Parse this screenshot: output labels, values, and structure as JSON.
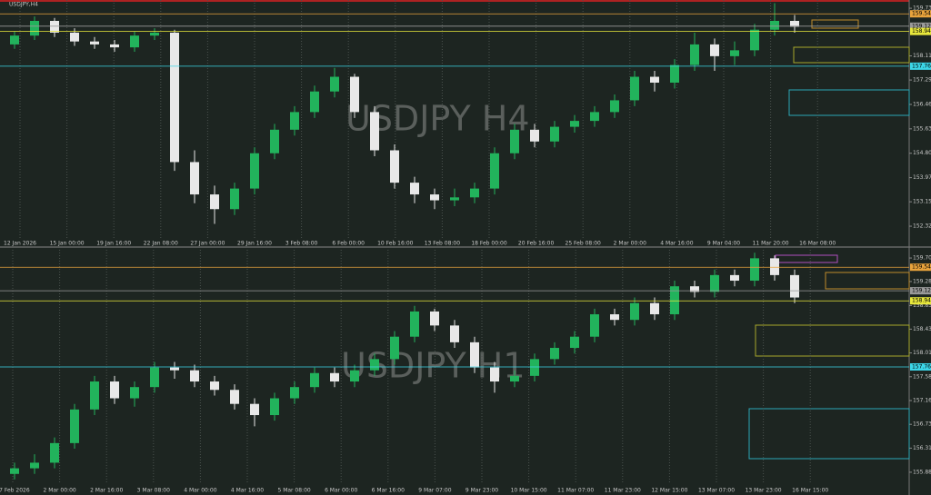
{
  "chart_data": [
    {
      "type": "candlestick",
      "title": "USDJPY,H4",
      "watermark": "USDJPY H4",
      "ylim": [
        151.92,
        160.01
      ],
      "yticks": [
        159.73,
        158.11,
        157.29,
        156.46,
        155.63,
        {
          "value": 154.8,
          "label": "154.80"
        },
        153.97,
        153.15,
        152.32
      ],
      "time_labels": [
        "12 Jan 2026",
        "15 Jan 00:00",
        "19 Jan 16:00",
        "22 Jan 08:00",
        "27 Jan 00:00",
        "29 Jan 16:00",
        "3 Feb 08:00",
        "6 Feb 00:00",
        "10 Feb 16:00",
        "13 Feb 08:00",
        "18 Feb 00:00",
        "20 Feb 16:00",
        "25 Feb 08:00",
        "2 Mar 00:00",
        "4 Mar 16:00",
        "9 Mar 04:00",
        "11 Mar 20:00",
        "16 Mar 08:00"
      ],
      "levels": [
        {
          "value": 159.54,
          "color": "#e8a33c"
        },
        {
          "value": 159.12,
          "color": "#9a9a9a"
        },
        {
          "value": 158.94,
          "color": "#e8e83c"
        },
        {
          "value": 157.76,
          "color": "#3cd6e8"
        }
      ],
      "candles": [
        [
          158.5,
          158.95,
          158.35,
          158.8
        ],
        [
          158.8,
          159.45,
          158.65,
          159.3
        ],
        [
          159.3,
          159.4,
          158.75,
          158.9
        ],
        [
          158.9,
          159.05,
          158.45,
          158.6
        ],
        [
          158.6,
          158.75,
          158.35,
          158.5
        ],
        [
          158.5,
          158.65,
          158.25,
          158.4
        ],
        [
          158.4,
          158.95,
          158.25,
          158.8
        ],
        [
          158.8,
          159.05,
          158.65,
          158.9
        ],
        [
          158.9,
          159.0,
          154.2,
          154.5
        ],
        [
          154.5,
          154.9,
          153.1,
          153.4
        ],
        [
          153.4,
          153.7,
          152.4,
          152.9
        ],
        [
          152.9,
          153.8,
          152.7,
          153.6
        ],
        [
          153.6,
          155.0,
          153.4,
          154.8
        ],
        [
          154.8,
          155.8,
          154.6,
          155.6
        ],
        [
          155.6,
          156.4,
          155.4,
          156.2
        ],
        [
          156.2,
          157.1,
          156.0,
          156.9
        ],
        [
          156.9,
          157.7,
          156.7,
          157.4
        ],
        [
          157.4,
          157.5,
          156.0,
          156.2
        ],
        [
          156.2,
          156.4,
          154.7,
          154.9
        ],
        [
          154.9,
          155.1,
          153.6,
          153.8
        ],
        [
          153.8,
          154.0,
          153.1,
          153.4
        ],
        [
          153.4,
          153.6,
          152.9,
          153.2
        ],
        [
          153.2,
          153.6,
          153.0,
          153.3
        ],
        [
          153.3,
          153.8,
          153.1,
          153.6
        ],
        [
          153.6,
          155.0,
          153.4,
          154.8
        ],
        [
          154.8,
          155.8,
          154.6,
          155.6
        ],
        [
          155.6,
          155.8,
          155.0,
          155.2
        ],
        [
          155.2,
          155.9,
          155.0,
          155.7
        ],
        [
          155.7,
          156.1,
          155.5,
          155.9
        ],
        [
          155.9,
          156.4,
          155.7,
          156.2
        ],
        [
          156.2,
          156.8,
          156.0,
          156.6
        ],
        [
          156.6,
          157.6,
          156.4,
          157.4
        ],
        [
          157.4,
          157.6,
          156.9,
          157.2
        ],
        [
          157.2,
          158.0,
          157.0,
          157.8
        ],
        [
          157.8,
          158.9,
          157.6,
          158.5
        ],
        [
          158.5,
          158.7,
          157.6,
          158.1
        ],
        [
          158.1,
          158.6,
          157.8,
          158.3
        ],
        [
          158.3,
          159.2,
          158.1,
          159.0
        ],
        [
          159.0,
          159.9,
          158.8,
          159.3
        ],
        [
          159.3,
          159.5,
          158.9,
          159.1
        ]
      ]
    },
    {
      "type": "candlestick",
      "watermark": "USDJPY H1",
      "ylim": [
        155.684,
        159.852
      ],
      "yticks": [
        159.705,
        159.285,
        158.855,
        158.435,
        {
          "value": 158.01,
          "label": "158.010"
        },
        157.585,
        {
          "value": 157.16,
          "label": "157.160"
        },
        156.735,
        {
          "value": 156.31,
          "label": "156.310"
        },
        {
          "value": 155.88,
          "label": "155.880"
        }
      ],
      "time_labels": [
        "27 Feb 2026",
        "2 Mar 00:00",
        "2 Mar 16:00",
        "3 Mar 08:00",
        "4 Mar 00:00",
        "4 Mar 16:00",
        "5 Mar 08:00",
        "6 Mar 00:00",
        "6 Mar 16:00",
        "9 Mar 07:00",
        "9 Mar 23:00",
        "10 Mar 15:00",
        "11 Mar 07:00",
        "11 Mar 23:00",
        "12 Mar 15:00",
        "13 Mar 07:00",
        "13 Mar 23:00",
        "16 Mar 15:00"
      ],
      "levels": [
        {
          "value": 159.54,
          "color": "#e8a33c"
        },
        {
          "value": 159.12,
          "color": "#9a9a9a"
        },
        {
          "value": 158.94,
          "color": "#e8e83c"
        },
        {
          "value": 157.76,
          "color": "#3cd6e8"
        }
      ],
      "candles": [
        [
          155.85,
          156.05,
          155.75,
          155.95
        ],
        [
          155.95,
          156.2,
          155.85,
          156.05
        ],
        [
          156.05,
          156.5,
          155.95,
          156.4
        ],
        [
          156.4,
          157.1,
          156.3,
          157.0
        ],
        [
          157.0,
          157.6,
          156.9,
          157.5
        ],
        [
          157.5,
          157.6,
          157.1,
          157.2
        ],
        [
          157.2,
          157.5,
          157.05,
          157.4
        ],
        [
          157.4,
          157.85,
          157.3,
          157.75
        ],
        [
          157.75,
          157.85,
          157.55,
          157.7
        ],
        [
          157.7,
          157.8,
          157.4,
          157.5
        ],
        [
          157.5,
          157.6,
          157.25,
          157.35
        ],
        [
          157.35,
          157.45,
          157.0,
          157.1
        ],
        [
          157.1,
          157.2,
          156.7,
          156.9
        ],
        [
          156.9,
          157.3,
          156.8,
          157.2
        ],
        [
          157.2,
          157.5,
          157.1,
          157.4
        ],
        [
          157.4,
          157.75,
          157.3,
          157.65
        ],
        [
          157.65,
          157.75,
          157.4,
          157.5
        ],
        [
          157.5,
          157.8,
          157.4,
          157.7
        ],
        [
          157.7,
          158.0,
          157.6,
          157.9
        ],
        [
          157.9,
          158.4,
          157.8,
          158.3
        ],
        [
          158.3,
          158.85,
          158.2,
          158.75
        ],
        [
          158.75,
          158.8,
          158.4,
          158.5
        ],
        [
          158.5,
          158.6,
          158.1,
          158.2
        ],
        [
          158.2,
          158.3,
          157.65,
          157.75
        ],
        [
          157.75,
          157.85,
          157.3,
          157.5
        ],
        [
          157.5,
          157.7,
          157.4,
          157.6
        ],
        [
          157.6,
          158.0,
          157.5,
          157.9
        ],
        [
          157.9,
          158.2,
          157.8,
          158.1
        ],
        [
          158.1,
          158.4,
          158.0,
          158.3
        ],
        [
          158.3,
          158.8,
          158.2,
          158.7
        ],
        [
          158.7,
          158.8,
          158.5,
          158.6
        ],
        [
          158.6,
          159.0,
          158.5,
          158.9
        ],
        [
          158.9,
          159.0,
          158.6,
          158.7
        ],
        [
          158.7,
          159.3,
          158.6,
          159.2
        ],
        [
          159.2,
          159.3,
          159.0,
          159.1
        ],
        [
          159.1,
          159.5,
          159.0,
          159.4
        ],
        [
          159.4,
          159.5,
          159.2,
          159.3
        ],
        [
          159.3,
          159.8,
          159.2,
          159.7
        ],
        [
          159.7,
          159.75,
          159.3,
          159.4
        ],
        [
          159.4,
          159.5,
          158.9,
          159.0
        ]
      ]
    }
  ]
}
